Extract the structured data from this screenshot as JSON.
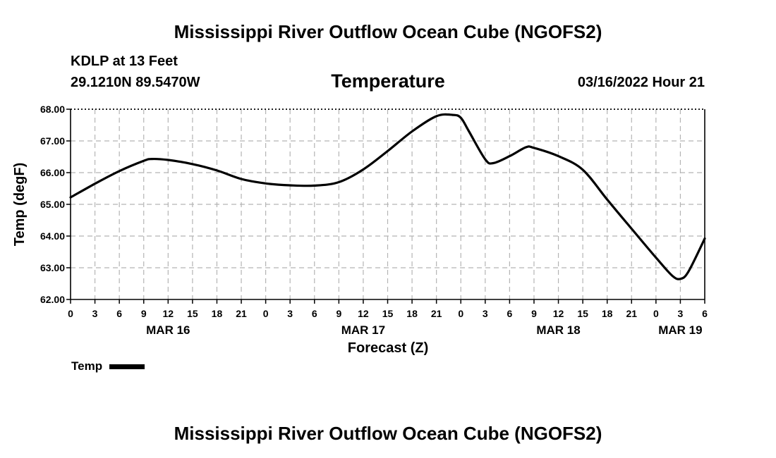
{
  "page": {
    "title": "Mississippi River Outflow Ocean Cube (NGOFS2)",
    "station": "KDLP at 13 Feet",
    "coordinates": "29.1210N  89.5470W",
    "variable": "Temperature",
    "datetime": "03/16/2022 Hour 21",
    "footer_title": "Mississippi River Outflow Ocean Cube (NGOFS2)"
  },
  "chart_data": {
    "type": "line",
    "title": "Temperature",
    "xlabel": "Forecast (Z)",
    "ylabel": "Temp (degF)",
    "ylim": [
      62.0,
      68.0
    ],
    "yticks": [
      "62.00",
      "63.00",
      "64.00",
      "65.00",
      "66.00",
      "67.00",
      "68.00"
    ],
    "xlim": [
      0,
      78
    ],
    "x_unit": "hours from MAR 16 00Z",
    "xtick_labels": [
      "0",
      "3",
      "6",
      "9",
      "12",
      "15",
      "18",
      "21",
      "0",
      "3",
      "6",
      "9",
      "12",
      "15",
      "18",
      "21",
      "0",
      "3",
      "6",
      "9",
      "12",
      "15",
      "18",
      "21",
      "0",
      "3",
      "6"
    ],
    "day_labels": [
      {
        "label": "MAR 16",
        "hour": 12
      },
      {
        "label": "MAR 17",
        "hour": 36
      },
      {
        "label": "MAR 18",
        "hour": 60
      },
      {
        "label": "MAR 19",
        "hour": 75
      }
    ],
    "grid": true,
    "legend_position": "bottom-left",
    "series": [
      {
        "name": "Temp",
        "color": "#000000",
        "x": [
          0,
          3,
          6,
          9,
          10,
          12,
          15,
          18,
          21,
          24,
          27,
          30,
          33,
          36,
          39,
          42,
          45,
          47,
          48,
          49,
          51,
          52,
          54,
          56,
          57,
          60,
          63,
          66,
          69,
          72,
          74,
          75,
          76,
          78
        ],
        "values": [
          65.22,
          65.65,
          66.05,
          66.37,
          66.43,
          66.4,
          66.27,
          66.07,
          65.8,
          65.66,
          65.6,
          65.59,
          65.7,
          66.1,
          66.68,
          67.3,
          67.78,
          67.82,
          67.73,
          67.3,
          66.42,
          66.3,
          66.52,
          66.8,
          66.78,
          66.52,
          66.09,
          65.15,
          64.23,
          63.32,
          62.75,
          62.65,
          62.88,
          63.92
        ]
      }
    ]
  }
}
